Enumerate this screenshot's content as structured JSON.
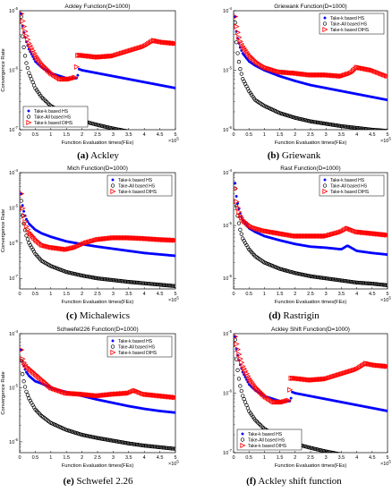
{
  "series_styles": [
    {
      "name": "Take-k based HS",
      "color": "#0000ff",
      "marker": "star"
    },
    {
      "name": "Take-All based HS",
      "color": "#000000",
      "marker": "circle"
    },
    {
      "name": "Take-k based DIHS",
      "color": "#ff0000",
      "marker": "triangle"
    }
  ],
  "chart_data": [
    {
      "type": "line",
      "title": "Ackley Function(D=1000)",
      "xlabel": "Function Evaluation times(FEs)",
      "ylabel": "Convergence Rate",
      "x_multiplier": "×10^5",
      "xlim": [
        0,
        5
      ],
      "ylim": [
        -7,
        -5
      ],
      "yscale": "log",
      "x_ticks": [
        "0",
        "0.5",
        "1",
        "1.5",
        "2",
        "2.5",
        "3",
        "3.5",
        "4",
        "4.5",
        "5"
      ],
      "y_ticks": [
        {
          "base": "10",
          "exp": "-5"
        },
        {
          "base": "10",
          "exp": "-6"
        },
        {
          "base": "10",
          "exp": "-7"
        }
      ],
      "legend": "bottom-left",
      "caption": {
        "letter": "(a)",
        "text": "Ackley"
      },
      "series": [
        {
          "name": "Take-k based HS",
          "x": [
            0.05,
            0.1,
            0.2,
            0.3,
            0.5,
            0.7,
            1,
            1.3,
            1.6,
            1.85,
            1.9,
            2.0,
            2.5,
            3,
            3.5,
            4,
            4.5,
            5
          ],
          "y": [
            -5.05,
            -5.3,
            -5.5,
            -5.65,
            -5.85,
            -5.95,
            -6.05,
            -6.1,
            -6.15,
            -6.13,
            -5.98,
            -6.0,
            -6.05,
            -6.1,
            -6.15,
            -6.2,
            -6.25,
            -6.3
          ]
        },
        {
          "name": "Take-All based HS",
          "x": [
            0.05,
            0.1,
            0.2,
            0.3,
            0.5,
            0.7,
            1,
            1.5,
            2,
            2.5,
            3,
            3.5,
            4,
            4.5,
            5
          ],
          "y": [
            -5.1,
            -5.5,
            -5.85,
            -6.05,
            -6.3,
            -6.45,
            -6.6,
            -6.75,
            -6.85,
            -6.92,
            -6.98,
            -7.03,
            -7.07,
            -7.1,
            -7.13
          ]
        },
        {
          "name": "Take-k based DIHS",
          "x": [
            0.05,
            0.1,
            0.2,
            0.3,
            0.5,
            0.7,
            1,
            1.3,
            1.6,
            1.8,
            1.85,
            2.0,
            2.5,
            3,
            3.5,
            4,
            4.3,
            4.6,
            5
          ],
          "y": [
            -5.05,
            -5.2,
            -5.4,
            -5.55,
            -5.75,
            -5.9,
            -6.05,
            -6.15,
            -6.15,
            -6.12,
            -5.75,
            -5.75,
            -5.78,
            -5.76,
            -5.68,
            -5.6,
            -5.5,
            -5.53,
            -5.55
          ]
        }
      ]
    },
    {
      "type": "line",
      "title": "Griewank Function(D=1000)",
      "xlabel": "Function Evaluation times(FEs)",
      "ylabel": "",
      "x_multiplier": "×10^5",
      "xlim": [
        0,
        5
      ],
      "ylim": [
        -6,
        -4
      ],
      "yscale": "log",
      "x_ticks": [
        "0",
        "0.5",
        "1",
        "1.5",
        "2",
        "2.5",
        "3",
        "3.5",
        "4",
        "4.5",
        "5"
      ],
      "y_ticks": [
        {
          "base": "10",
          "exp": "-4"
        },
        {
          "base": "10",
          "exp": "-5"
        },
        {
          "base": "10",
          "exp": "-6"
        }
      ],
      "legend": "top-right",
      "caption": {
        "letter": "(b)",
        "text": "Griewank"
      },
      "series": [
        {
          "name": "Take-k based HS",
          "x": [
            0.05,
            0.1,
            0.2,
            0.3,
            0.5,
            0.7,
            1,
            1.5,
            2,
            2.5,
            3,
            3.5,
            4,
            4.5,
            5
          ],
          "y": [
            -4.1,
            -4.4,
            -4.6,
            -4.72,
            -4.85,
            -4.92,
            -5.0,
            -5.1,
            -5.18,
            -5.25,
            -5.3,
            -5.35,
            -5.4,
            -5.45,
            -5.5
          ]
        },
        {
          "name": "Take-All based HS",
          "x": [
            0.05,
            0.1,
            0.2,
            0.3,
            0.5,
            0.7,
            1,
            1.5,
            2,
            2.5,
            3,
            3.5,
            4,
            4.5,
            5
          ],
          "y": [
            -4.2,
            -4.6,
            -4.95,
            -5.15,
            -5.35,
            -5.5,
            -5.6,
            -5.72,
            -5.8,
            -5.86,
            -5.9,
            -5.94,
            -5.97,
            -6.0,
            -6.02
          ]
        },
        {
          "name": "Take-k based DIHS",
          "x": [
            0.05,
            0.1,
            0.2,
            0.3,
            0.5,
            0.7,
            1,
            1.5,
            2,
            2.5,
            3,
            3.5,
            3.8,
            4,
            4.5,
            5
          ],
          "y": [
            -4.1,
            -4.3,
            -4.5,
            -4.6,
            -4.75,
            -4.85,
            -4.95,
            -5.03,
            -5.05,
            -5.08,
            -5.08,
            -5.1,
            -5.05,
            -4.95,
            -5.0,
            -5.1
          ]
        }
      ]
    },
    {
      "type": "line",
      "title": "Mich Function(D=1000)",
      "xlabel": "Function Evaluation times(FEs)",
      "ylabel": "Convergence Rate",
      "x_multiplier": "×10^5",
      "xlim": [
        0,
        5
      ],
      "ylim": [
        -7.3,
        -4
      ],
      "yscale": "log",
      "x_ticks": [
        "0",
        "0.5",
        "1",
        "1.5",
        "2",
        "2.5",
        "3",
        "3.5",
        "4",
        "4.5",
        "5"
      ],
      "y_ticks": [
        {
          "base": "10",
          "exp": "-4"
        },
        {
          "base": "10",
          "exp": "-5"
        },
        {
          "base": "10",
          "exp": "-6"
        },
        {
          "base": "10",
          "exp": "-7"
        }
      ],
      "legend": "top-right",
      "caption": {
        "letter": "(c)",
        "text": "Michalewics"
      },
      "series": [
        {
          "name": "Take-k based HS",
          "x": [
            0.05,
            0.1,
            0.2,
            0.3,
            0.5,
            0.7,
            1,
            1.5,
            2,
            2.5,
            3,
            3.5,
            4,
            4.5,
            5
          ],
          "y": [
            -4.6,
            -5.0,
            -5.3,
            -5.45,
            -5.62,
            -5.72,
            -5.82,
            -5.95,
            -6.03,
            -6.1,
            -6.16,
            -6.22,
            -6.28,
            -6.32,
            -6.36
          ]
        },
        {
          "name": "Take-All based HS",
          "x": [
            0.05,
            0.1,
            0.2,
            0.3,
            0.5,
            0.7,
            1,
            1.5,
            2,
            2.5,
            3,
            3.5,
            4,
            4.5,
            5
          ],
          "y": [
            -4.8,
            -5.3,
            -5.75,
            -6.0,
            -6.3,
            -6.5,
            -6.65,
            -6.82,
            -6.92,
            -7.0,
            -7.05,
            -7.1,
            -7.14,
            -7.18,
            -7.22
          ]
        },
        {
          "name": "Take-k based DIHS",
          "x": [
            0.05,
            0.1,
            0.2,
            0.3,
            0.5,
            0.7,
            1,
            1.5,
            1.8,
            2.1,
            2.5,
            3,
            3.5,
            4,
            4.5,
            5
          ],
          "y": [
            -4.6,
            -5.1,
            -5.5,
            -5.7,
            -5.9,
            -6.05,
            -6.12,
            -6.18,
            -6.12,
            -6.0,
            -5.9,
            -5.85,
            -5.85,
            -5.87,
            -5.9,
            -5.92
          ]
        }
      ]
    },
    {
      "type": "line",
      "title": "Rast Function(D=1000)",
      "xlabel": "Function Evaluation times(FEs)",
      "ylabel": "",
      "x_multiplier": "×10^5",
      "xlim": [
        0,
        5
      ],
      "ylim": [
        -6.2,
        -4
      ],
      "yscale": "log",
      "x_ticks": [
        "0",
        "0.5",
        "1",
        "1.5",
        "2",
        "2.5",
        "3",
        "3.5",
        "4",
        "4.5",
        "5"
      ],
      "y_ticks": [
        {
          "base": "10",
          "exp": "-4"
        },
        {
          "base": "10",
          "exp": "-5"
        },
        {
          "base": "10",
          "exp": "-6"
        }
      ],
      "legend": "top-right",
      "caption": {
        "letter": "(d)",
        "text": "Rastrigin"
      },
      "series": [
        {
          "name": "Take-k based HS",
          "x": [
            0.05,
            0.1,
            0.2,
            0.3,
            0.5,
            0.7,
            1,
            1.5,
            2,
            2.5,
            3,
            3.5,
            3.7,
            4,
            4.5,
            5
          ],
          "y": [
            -4.2,
            -4.5,
            -4.75,
            -4.9,
            -5.05,
            -5.12,
            -5.2,
            -5.28,
            -5.35,
            -5.4,
            -5.42,
            -5.45,
            -5.38,
            -5.48,
            -5.52,
            -5.55
          ]
        },
        {
          "name": "Take-All based HS",
          "x": [
            0.05,
            0.1,
            0.2,
            0.3,
            0.5,
            0.7,
            1,
            1.5,
            2,
            2.5,
            3,
            3.5,
            4,
            4.5,
            5
          ],
          "y": [
            -4.3,
            -4.7,
            -5.05,
            -5.25,
            -5.45,
            -5.58,
            -5.7,
            -5.82,
            -5.9,
            -5.96,
            -6.0,
            -6.04,
            -6.08,
            -6.1,
            -6.13
          ]
        },
        {
          "name": "Take-k based DIHS",
          "x": [
            0.05,
            0.1,
            0.2,
            0.3,
            0.5,
            0.7,
            1,
            1.5,
            2,
            2.5,
            3,
            3.5,
            3.7,
            4,
            4.5,
            5
          ],
          "y": [
            -4.3,
            -4.6,
            -4.8,
            -4.9,
            -5.0,
            -5.05,
            -5.1,
            -5.15,
            -5.2,
            -5.2,
            -5.2,
            -5.12,
            -5.05,
            -5.12,
            -5.15,
            -5.18
          ]
        }
      ]
    },
    {
      "type": "line",
      "title": "Schwefel226 Function(D=1000)",
      "xlabel": "Function Evaluation times(FEs)",
      "ylabel": "Convergence Rate",
      "x_multiplier": "×10^5",
      "xlim": [
        0,
        5
      ],
      "ylim": [
        -6.2,
        -4
      ],
      "yscale": "log",
      "x_ticks": [
        "0",
        "0.5",
        "1",
        "1.5",
        "2",
        "2.5",
        "3",
        "3.5",
        "4",
        "4.5",
        "5"
      ],
      "y_ticks": [
        {
          "base": "10",
          "exp": "-4"
        },
        {
          "base": "10",
          "exp": "-5"
        },
        {
          "base": "10",
          "exp": "-6"
        }
      ],
      "legend": "top-right",
      "caption": {
        "letter": "(e)",
        "text": "Schwefel 2.26"
      },
      "series": [
        {
          "name": "Take-k based HS",
          "x": [
            0.05,
            0.1,
            0.2,
            0.3,
            0.5,
            0.7,
            1,
            1.5,
            2,
            2.5,
            3,
            3.5,
            4,
            4.5,
            5
          ],
          "y": [
            -4.3,
            -4.55,
            -4.7,
            -4.78,
            -4.88,
            -4.92,
            -5.0,
            -5.08,
            -5.15,
            -5.22,
            -5.28,
            -5.34,
            -5.39,
            -5.43,
            -5.46
          ]
        },
        {
          "name": "Take-All based HS",
          "x": [
            0.05,
            0.1,
            0.2,
            0.3,
            0.5,
            0.7,
            1,
            1.5,
            2,
            2.5,
            3,
            3.5,
            4,
            4.5,
            5
          ],
          "y": [
            -4.5,
            -4.8,
            -5.05,
            -5.2,
            -5.4,
            -5.52,
            -5.65,
            -5.78,
            -5.87,
            -5.93,
            -5.98,
            -6.03,
            -6.07,
            -6.1,
            -6.13
          ]
        },
        {
          "name": "Take-k based DIHS",
          "x": [
            0.05,
            0.1,
            0.2,
            0.3,
            0.5,
            0.7,
            1,
            1.5,
            2,
            2.5,
            3,
            3.5,
            3.7,
            4,
            4.5,
            5
          ],
          "y": [
            -4.3,
            -4.5,
            -4.6,
            -4.65,
            -4.75,
            -4.85,
            -5.0,
            -5.1,
            -5.12,
            -5.15,
            -5.12,
            -5.1,
            -5.05,
            -5.12,
            -5.15,
            -5.18
          ]
        }
      ]
    },
    {
      "type": "line",
      "title": "Ackley Shift Function(D=1000)",
      "xlabel": "Function Evaluation times(FEs)",
      "ylabel": "",
      "x_multiplier": "×10^5",
      "xlim": [
        0,
        5
      ],
      "ylim": [
        -7,
        -5
      ],
      "yscale": "log",
      "x_ticks": [
        "0",
        "0.5",
        "1",
        "1.5",
        "2",
        "2.5",
        "3",
        "3.5",
        "4",
        "4.5",
        "5"
      ],
      "y_ticks": [
        {
          "base": "10",
          "exp": "-5"
        },
        {
          "base": "10",
          "exp": "-6"
        },
        {
          "base": "10",
          "exp": "-7"
        }
      ],
      "legend": "bottom-left",
      "caption": {
        "letter": "(f)",
        "text": "Ackley shift function"
      },
      "series": [
        {
          "name": "Take-k based HS",
          "x": [
            0.05,
            0.1,
            0.2,
            0.3,
            0.5,
            0.7,
            1,
            1.3,
            1.6,
            1.85,
            1.9,
            2.0,
            2.5,
            3,
            3.5,
            4,
            4.5,
            5
          ],
          "y": [
            -5.05,
            -5.3,
            -5.5,
            -5.65,
            -5.85,
            -5.95,
            -6.05,
            -6.1,
            -6.15,
            -6.13,
            -5.98,
            -6.0,
            -6.05,
            -6.1,
            -6.15,
            -6.2,
            -6.25,
            -6.3
          ]
        },
        {
          "name": "Take-All based HS",
          "x": [
            0.05,
            0.1,
            0.2,
            0.3,
            0.5,
            0.7,
            1,
            1.5,
            2,
            2.5,
            3,
            3.5,
            4,
            4.5,
            5
          ],
          "y": [
            -5.1,
            -5.5,
            -5.85,
            -6.05,
            -6.3,
            -6.45,
            -6.6,
            -6.75,
            -6.85,
            -6.92,
            -6.98,
            -7.03,
            -7.07,
            -7.1,
            -7.13
          ]
        },
        {
          "name": "Take-k based DIHS",
          "x": [
            0.05,
            0.1,
            0.2,
            0.3,
            0.5,
            0.7,
            1,
            1.3,
            1.6,
            1.8,
            1.85,
            2.0,
            2.5,
            3,
            3.5,
            4,
            4.3,
            4.6,
            5
          ],
          "y": [
            -5.05,
            -5.2,
            -5.4,
            -5.55,
            -5.75,
            -5.9,
            -6.05,
            -6.15,
            -6.15,
            -6.12,
            -5.75,
            -5.75,
            -5.78,
            -5.76,
            -5.68,
            -5.6,
            -5.5,
            -5.53,
            -5.55
          ]
        }
      ]
    }
  ]
}
